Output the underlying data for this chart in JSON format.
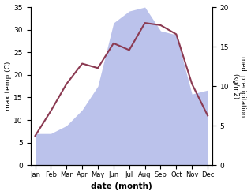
{
  "months": [
    "Jan",
    "Feb",
    "Mar",
    "Apr",
    "May",
    "Jun",
    "Jul",
    "Aug",
    "Sep",
    "Oct",
    "Nov",
    "Dec"
  ],
  "temp_max": [
    6.5,
    12.0,
    18.0,
    22.5,
    21.5,
    27.0,
    25.5,
    31.5,
    31.0,
    29.0,
    18.0,
    11.0
  ],
  "precip": [
    4.0,
    4.0,
    5.0,
    7.0,
    10.0,
    18.0,
    19.5,
    20.0,
    17.0,
    16.5,
    9.0,
    9.5
  ],
  "temp_color": "#8b3a52",
  "precip_color": "#b0b8e8",
  "background": "#ffffff",
  "ylabel_left": "max temp (C)",
  "ylabel_right": "med. precipitation\n(kg/m2)",
  "xlabel": "date (month)",
  "ylim_left": [
    0,
    35
  ],
  "ylim_right": [
    0,
    20
  ],
  "yticks_left": [
    0,
    5,
    10,
    15,
    20,
    25,
    30,
    35
  ],
  "yticks_right": [
    0,
    5,
    10,
    15,
    20
  ]
}
